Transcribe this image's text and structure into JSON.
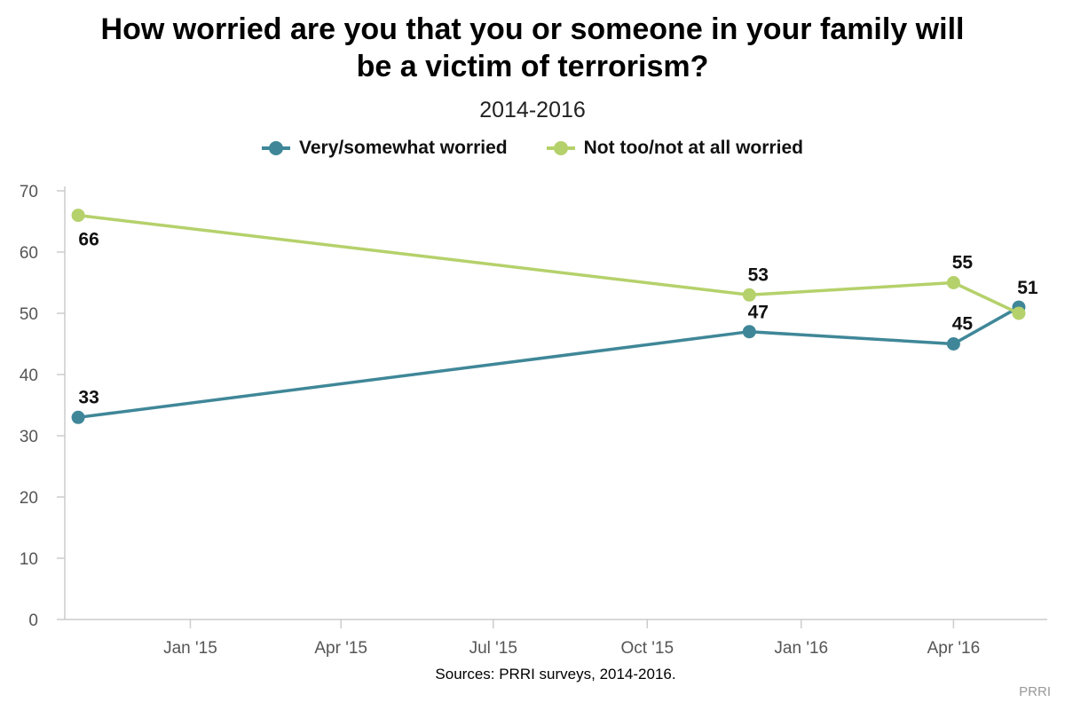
{
  "chart_data": {
    "type": "line",
    "title_lines": [
      "How worried are you that you or someone in your family will",
      "be a victim of terrorism?"
    ],
    "subtitle": "2014-2016",
    "xlabel": "",
    "ylabel": "",
    "ylim": [
      0,
      70
    ],
    "yticks": [
      0,
      10,
      20,
      30,
      40,
      50,
      60,
      70
    ],
    "xticks": [
      {
        "date": "2015-01-01",
        "label": "Jan '15"
      },
      {
        "date": "2015-04-01",
        "label": "Apr '15"
      },
      {
        "date": "2015-07-01",
        "label": "Jul '15"
      },
      {
        "date": "2015-10-01",
        "label": "Oct '15"
      },
      {
        "date": "2016-01-01",
        "label": "Jan '16"
      },
      {
        "date": "2016-04-01",
        "label": "Apr '16"
      }
    ],
    "xlim": [
      "2014-10-18",
      "2016-05-27"
    ],
    "grid": false,
    "legend": "top-center",
    "series": [
      {
        "name": "Very/somewhat worried",
        "color": "#3f8798",
        "points": [
          {
            "x": "2014-10-26",
            "y": 33
          },
          {
            "x": "2015-12-01",
            "y": 47
          },
          {
            "x": "2016-04-01",
            "y": 45
          },
          {
            "x": "2016-05-10",
            "y": 51
          }
        ],
        "labels": [
          "33",
          "47",
          "45",
          "51"
        ]
      },
      {
        "name": "Not too/not at all worried",
        "color": "#b5d16b",
        "points": [
          {
            "x": "2014-10-26",
            "y": 66
          },
          {
            "x": "2015-12-01",
            "y": 53
          },
          {
            "x": "2016-04-01",
            "y": 55
          },
          {
            "x": "2016-05-10",
            "y": 50
          }
        ],
        "labels": [
          "66",
          "53",
          "55",
          ""
        ]
      }
    ],
    "source": "Sources: PRRI surveys, 2014-2016.",
    "credit": "PRRI"
  }
}
